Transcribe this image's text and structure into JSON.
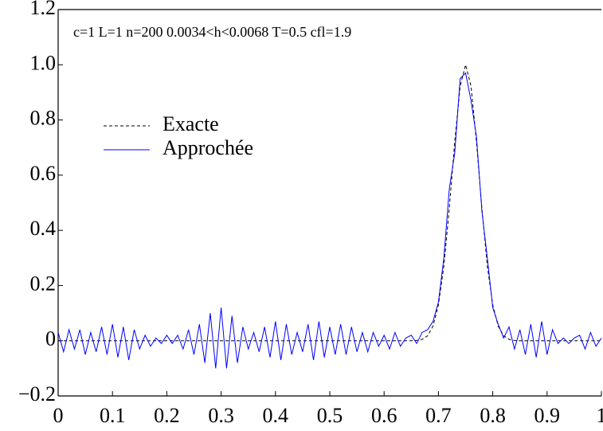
{
  "chart_data": {
    "type": "line",
    "annotation": "c=1   L=1   n=200   0.0034<h<0.0068   T=0.5   cfl=1.9",
    "x": [
      0,
      0.01,
      0.02,
      0.03,
      0.04,
      0.05,
      0.06,
      0.07,
      0.08,
      0.09,
      0.1,
      0.11,
      0.12,
      0.13,
      0.14,
      0.15,
      0.16,
      0.17,
      0.18,
      0.19,
      0.2,
      0.21,
      0.22,
      0.23,
      0.24,
      0.25,
      0.26,
      0.27,
      0.28,
      0.29,
      0.3,
      0.31,
      0.32,
      0.33,
      0.34,
      0.35,
      0.36,
      0.37,
      0.38,
      0.39,
      0.4,
      0.41,
      0.42,
      0.43,
      0.44,
      0.45,
      0.46,
      0.47,
      0.48,
      0.49,
      0.5,
      0.51,
      0.52,
      0.53,
      0.54,
      0.55,
      0.56,
      0.57,
      0.58,
      0.59,
      0.6,
      0.61,
      0.62,
      0.63,
      0.64,
      0.65,
      0.66,
      0.67,
      0.68,
      0.69,
      0.7,
      0.71,
      0.72,
      0.73,
      0.74,
      0.75,
      0.76,
      0.77,
      0.78,
      0.79,
      0.8,
      0.81,
      0.82,
      0.83,
      0.84,
      0.85,
      0.86,
      0.87,
      0.88,
      0.89,
      0.9,
      0.91,
      0.92,
      0.93,
      0.94,
      0.95,
      0.96,
      0.97,
      0.98,
      0.99,
      1
    ],
    "series": [
      {
        "name": "Exacte",
        "color": "#000000",
        "style": "dashed",
        "values": [
          0,
          0,
          0,
          0,
          0,
          0,
          0,
          0,
          0,
          0,
          0,
          0,
          0,
          0,
          0,
          0,
          0,
          0,
          0,
          0,
          0,
          0,
          0,
          0,
          0,
          0,
          0,
          0,
          0,
          0,
          0,
          0,
          0,
          0,
          0,
          0,
          0,
          0,
          0,
          0,
          0,
          0,
          0,
          0,
          0,
          0,
          0,
          0,
          0,
          0,
          0,
          0,
          0,
          0,
          0,
          0,
          0,
          0,
          0,
          0,
          0,
          0,
          0,
          0,
          0,
          0,
          0.001,
          0.005,
          0.018,
          0.053,
          0.13,
          0.271,
          0.48,
          0.721,
          0.922,
          1,
          0.922,
          0.721,
          0.48,
          0.271,
          0.13,
          0.053,
          0.018,
          0.005,
          0.001,
          0,
          0,
          0,
          0,
          0,
          0,
          0,
          0,
          0,
          0,
          0,
          0,
          0,
          0,
          0,
          0
        ]
      },
      {
        "name": "Approchée",
        "color": "#0000ff",
        "style": "solid",
        "values": [
          0.03,
          -0.04,
          0.04,
          -0.03,
          0.04,
          -0.05,
          0.03,
          -0.04,
          0.05,
          -0.05,
          0.06,
          -0.06,
          0.05,
          -0.07,
          0.04,
          -0.03,
          0.02,
          -0.02,
          0.01,
          -0.01,
          0.02,
          -0.01,
          0.02,
          -0.03,
          0.04,
          -0.05,
          0.06,
          -0.08,
          0.1,
          -0.1,
          0.12,
          -0.1,
          0.09,
          -0.08,
          0.05,
          -0.03,
          0.03,
          -0.04,
          0.05,
          -0.06,
          0.07,
          -0.07,
          0.06,
          -0.05,
          0.03,
          -0.04,
          0.06,
          -0.07,
          0.07,
          -0.06,
          0.05,
          -0.05,
          0.06,
          -0.05,
          0.05,
          -0.04,
          0.03,
          -0.04,
          0.03,
          -0.02,
          0.02,
          -0.03,
          0.03,
          -0.02,
          0.01,
          0.02,
          -0.01,
          0.03,
          0.04,
          0.07,
          0.14,
          0.3,
          0.55,
          0.68,
          0.95,
          0.97,
          0.87,
          0.74,
          0.47,
          0.3,
          0.12,
          0.06,
          0.01,
          0.05,
          -0.03,
          0.04,
          -0.05,
          0.06,
          -0.06,
          0.07,
          -0.05,
          0.04,
          -0.01,
          0.01,
          -0.01,
          0.01,
          0.02,
          -0.03,
          0.03,
          -0.02,
          0.01
        ]
      }
    ],
    "xlim": [
      0,
      1
    ],
    "ylim": [
      -0.2,
      1.2
    ],
    "xticks": [
      0,
      0.1,
      0.2,
      0.3,
      0.4,
      0.5,
      0.6,
      0.7,
      0.8,
      0.9,
      1
    ],
    "yticks": [
      {
        "value": -0.2,
        "label": "−0.2"
      },
      0,
      0.2,
      0.4,
      0.6,
      0.8,
      {
        "value": 1.0,
        "label": "1.0"
      },
      1.2
    ],
    "legend": "upper left"
  }
}
